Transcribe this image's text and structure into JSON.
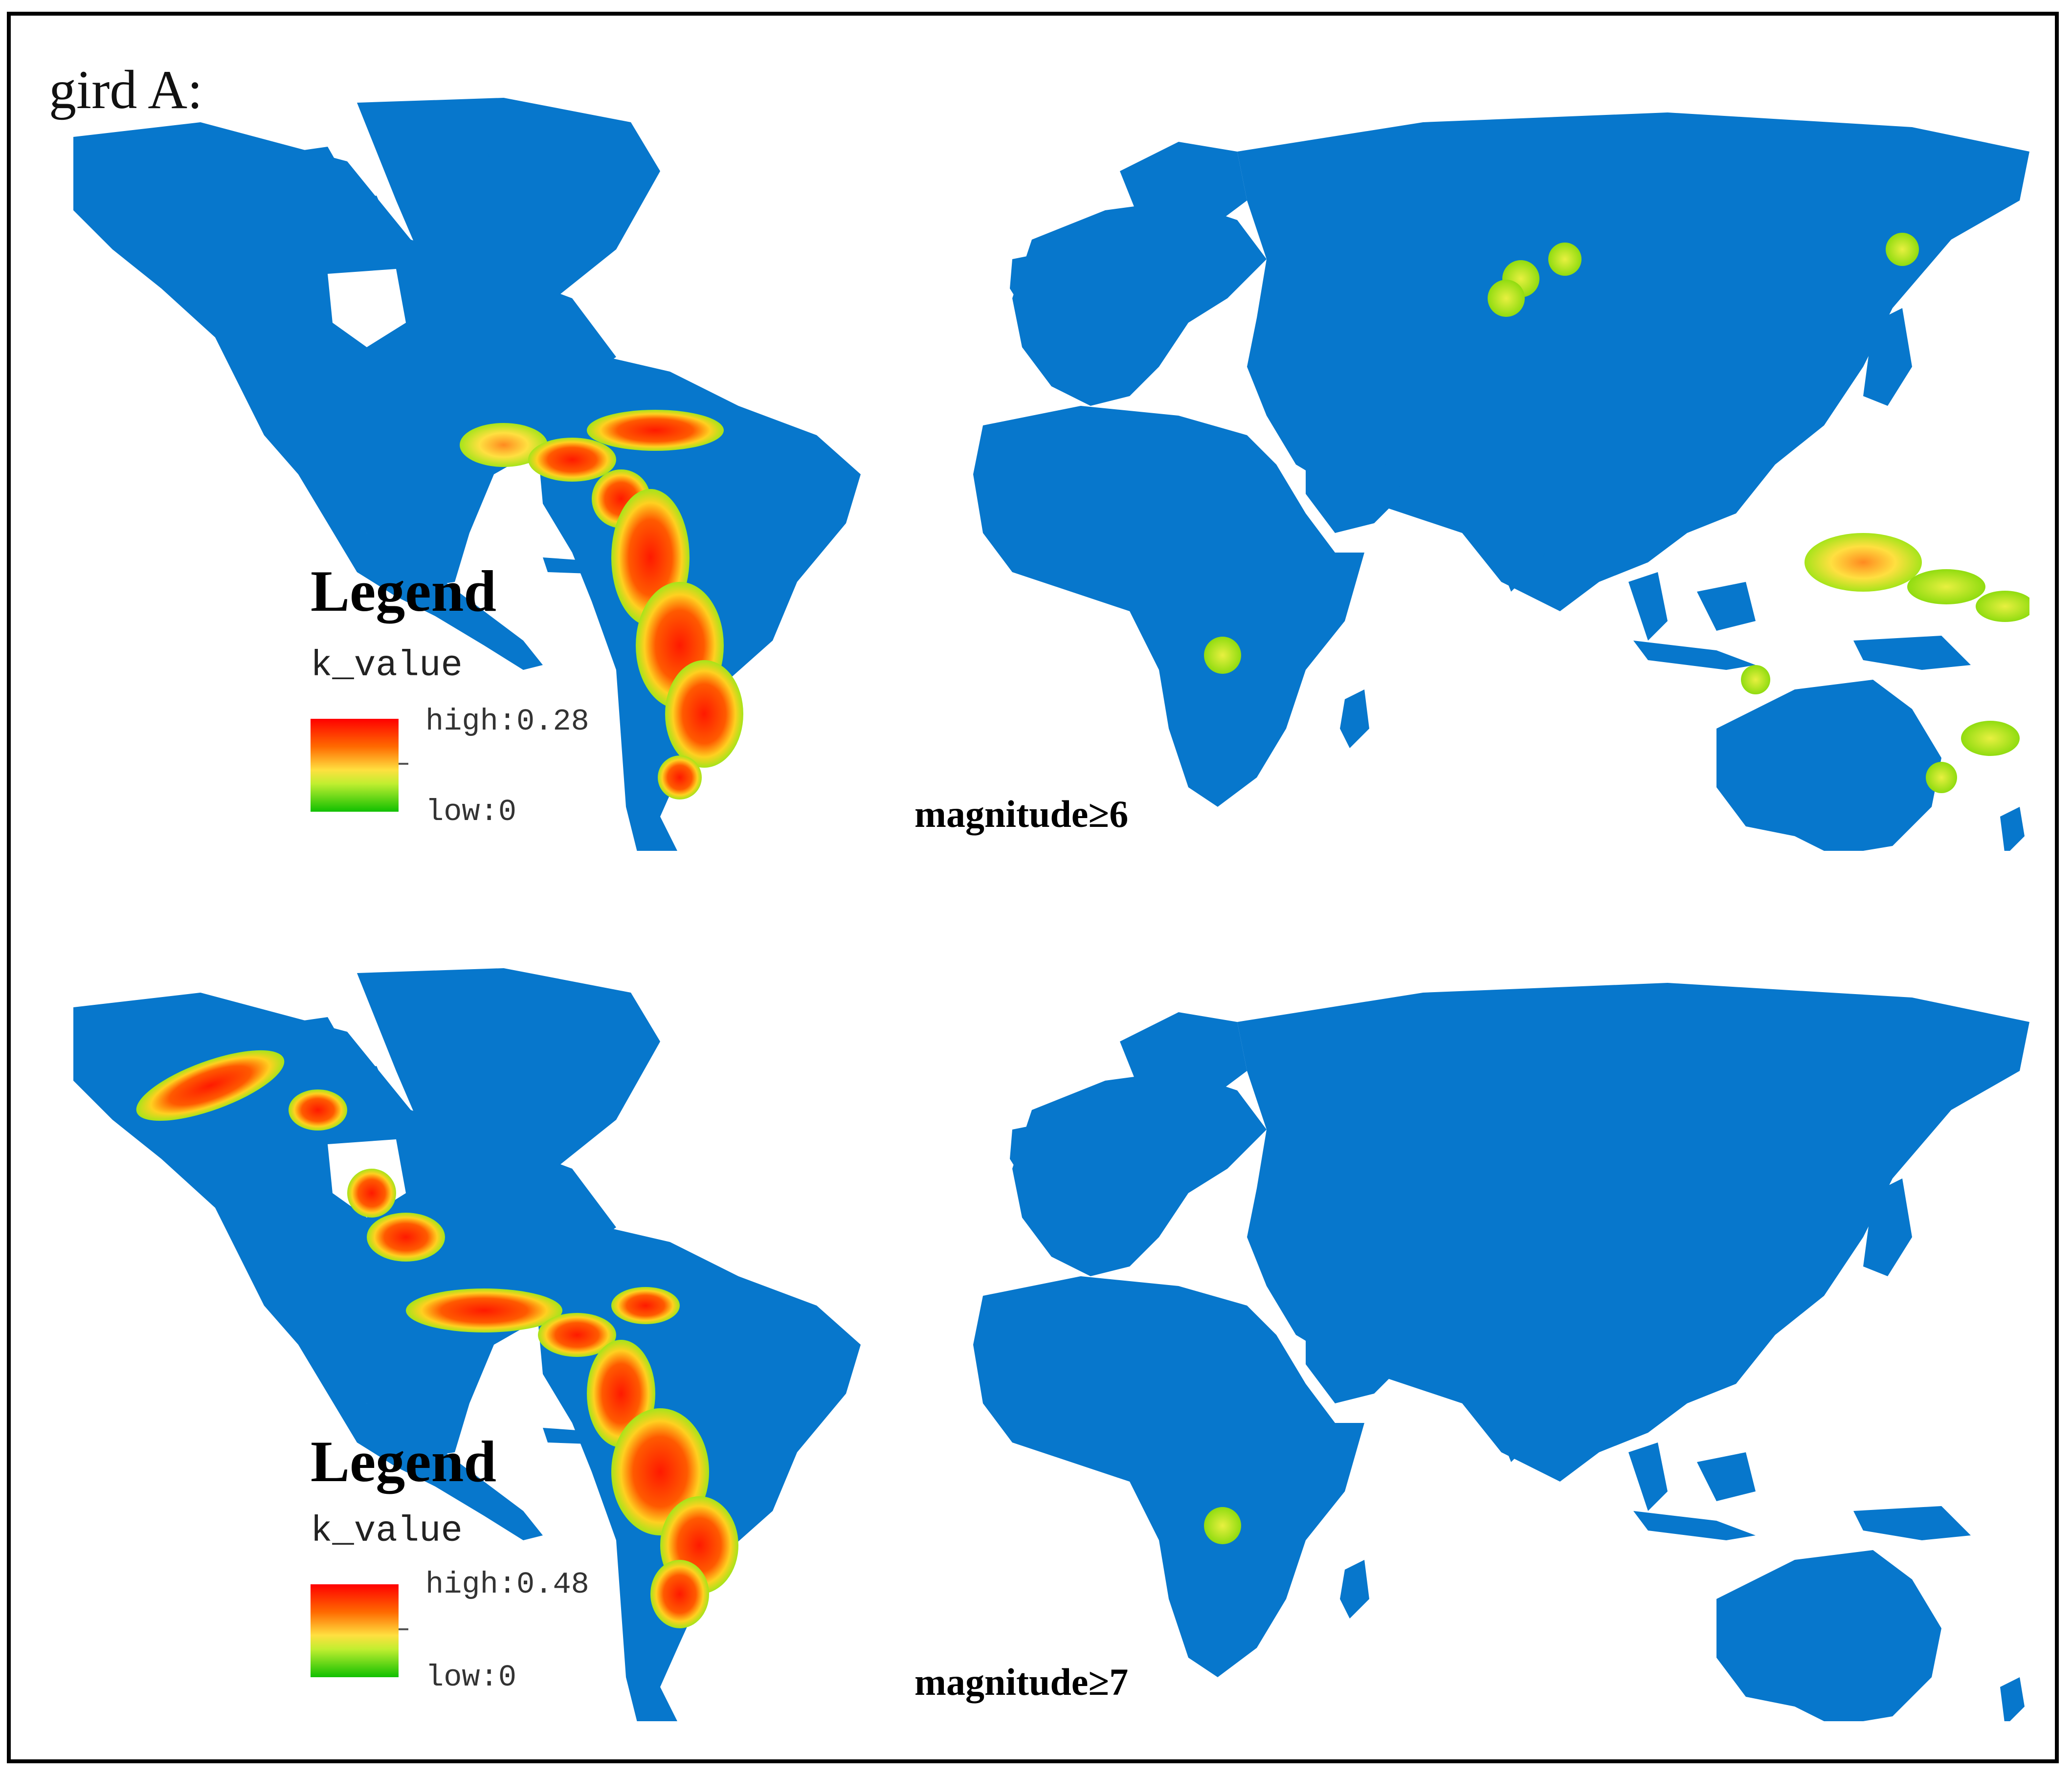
{
  "figure": {
    "title": "gird A:"
  },
  "colors": {
    "land": "#0777cc",
    "ocean": "#ffffff",
    "ramp_high": "#ff0000",
    "ramp_mid": "#ffe040",
    "ramp_low": "#10c000",
    "halo": "#a6e41a"
  },
  "panels": [
    {
      "legend": {
        "title": "Legend",
        "field": "k_value",
        "high_label": "high:0.28",
        "low_label": "low:0"
      },
      "caption": "magnitude≥6",
      "hotspot_regions": [
        "Central America",
        "Caribbean",
        "Andes (Peru, Chile)",
        "Patagonia",
        "Mongolia",
        "Kamchatka",
        "South Africa",
        "New Guinea",
        "Solomon Islands",
        "Vanuatu/Fiji",
        "Western Australia",
        "New Zealand"
      ]
    },
    {
      "legend": {
        "title": "Legend",
        "field": "k_value",
        "high_label": "high:0.48",
        "low_label": "low:0"
      },
      "caption": "magnitude≥7",
      "hotspot_regions": [
        "Alaska",
        "Western Canada",
        "California",
        "Mexico",
        "Central America",
        "Caribbean",
        "Andes (Peru, Chile)",
        "South Africa"
      ]
    }
  ]
}
